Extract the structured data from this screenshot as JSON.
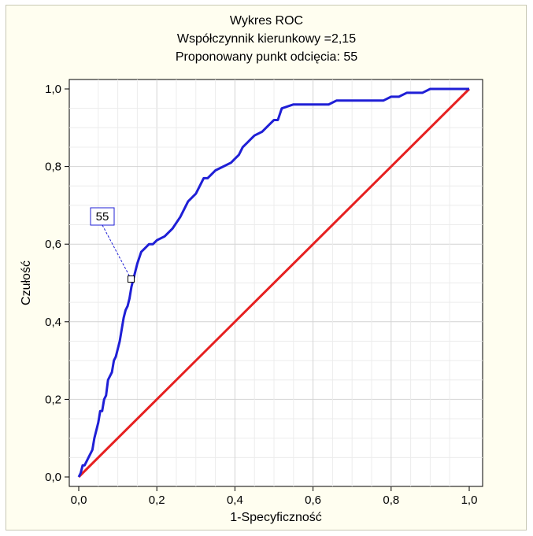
{
  "chart_data": {
    "type": "line",
    "title": "Wykres ROC",
    "subtitle_lines": [
      "Współczynnik kierunkowy =2,15",
      "Proponowany punkt odcięcia: 55"
    ],
    "xlabel": "1-Specyficzność",
    "ylabel": "Czułość",
    "xlim": [
      0,
      1
    ],
    "ylim": [
      0,
      1
    ],
    "x_tick_labels": [
      "0,0",
      "0,2",
      "0,4",
      "0,6",
      "0,8",
      "1,0"
    ],
    "y_tick_labels": [
      "0,0",
      "0,2",
      "0,4",
      "0,6",
      "0,8",
      "1,0"
    ],
    "grid": true,
    "series": [
      {
        "color": "#1f1fd6",
        "x": [
          0.0,
          0.005,
          0.01,
          0.015,
          0.02,
          0.025,
          0.03,
          0.035,
          0.04,
          0.045,
          0.05,
          0.055,
          0.06,
          0.065,
          0.07,
          0.075,
          0.08,
          0.085,
          0.09,
          0.095,
          0.1,
          0.105,
          0.11,
          0.115,
          0.12,
          0.125,
          0.13,
          0.135,
          0.14,
          0.145,
          0.15,
          0.16,
          0.17,
          0.18,
          0.19,
          0.2,
          0.22,
          0.24,
          0.26,
          0.27,
          0.28,
          0.3,
          0.32,
          0.33,
          0.35,
          0.37,
          0.39,
          0.4,
          0.41,
          0.42,
          0.43,
          0.44,
          0.45,
          0.47,
          0.49,
          0.5,
          0.51,
          0.52,
          0.55,
          0.57,
          0.6,
          0.62,
          0.64,
          0.66,
          0.68,
          0.7,
          0.72,
          0.74,
          0.76,
          0.78,
          0.8,
          0.82,
          0.84,
          0.86,
          0.88,
          0.9,
          0.92,
          0.94,
          0.96,
          0.98,
          1.0
        ],
        "y": [
          0.0,
          0.01,
          0.03,
          0.03,
          0.04,
          0.05,
          0.06,
          0.07,
          0.1,
          0.12,
          0.14,
          0.17,
          0.17,
          0.2,
          0.21,
          0.25,
          0.26,
          0.27,
          0.3,
          0.31,
          0.33,
          0.35,
          0.38,
          0.41,
          0.43,
          0.44,
          0.46,
          0.49,
          0.51,
          0.53,
          0.55,
          0.58,
          0.59,
          0.6,
          0.6,
          0.61,
          0.62,
          0.64,
          0.67,
          0.69,
          0.71,
          0.73,
          0.77,
          0.77,
          0.79,
          0.8,
          0.81,
          0.82,
          0.83,
          0.85,
          0.86,
          0.87,
          0.88,
          0.89,
          0.91,
          0.92,
          0.92,
          0.95,
          0.96,
          0.96,
          0.96,
          0.96,
          0.96,
          0.97,
          0.97,
          0.97,
          0.97,
          0.97,
          0.97,
          0.97,
          0.98,
          0.98,
          0.99,
          0.99,
          0.99,
          1.0,
          1.0,
          1.0,
          1.0,
          1.0,
          1.0
        ]
      },
      {
        "color": "#e62020",
        "x": [
          0,
          1
        ],
        "y": [
          0,
          1
        ]
      }
    ],
    "annotation": {
      "label": "55",
      "x": 0.134,
      "y": 0.51
    }
  }
}
